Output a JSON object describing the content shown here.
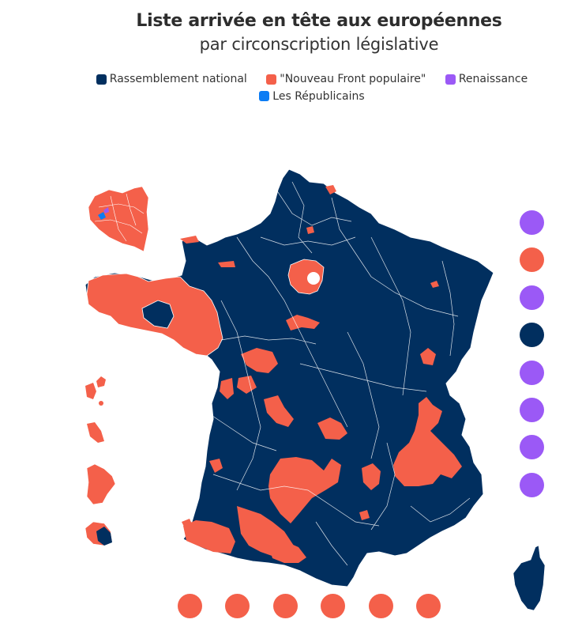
{
  "title": "Liste arrivée en tête aux européennes",
  "subtitle": "par circonscription législative",
  "colors": {
    "rn": "#012f5f",
    "nfp": "#f4604a",
    "renaissance": "#9b59f6",
    "lr": "#0b7cf4",
    "border": "#ffffff"
  },
  "legend": [
    {
      "label": "Rassemblement national",
      "key": "rn"
    },
    {
      "label": "\"Nouveau Front populaire\"",
      "key": "nfp"
    },
    {
      "label": "Renaissance",
      "key": "renaissance"
    },
    {
      "label": "Les Républicains",
      "key": "lr"
    }
  ],
  "map": {
    "territory": "France métropolitaine",
    "dominant_party": "rn",
    "insets": [
      {
        "name": "Paris et petite couronne",
        "dominant": "nfp",
        "also": [
          "lr",
          "renaissance"
        ]
      },
      {
        "name": "Guadeloupe",
        "dominant": "nfp"
      },
      {
        "name": "Martinique",
        "dominant": "nfp"
      },
      {
        "name": "Guyane",
        "dominant": "nfp"
      },
      {
        "name": "La Réunion",
        "dominant": "nfp",
        "also": [
          "rn"
        ]
      },
      {
        "name": "Corse",
        "dominant": "rn"
      }
    ]
  },
  "overseas_dots_right": [
    "renaissance",
    "nfp",
    "renaissance",
    "rn",
    "renaissance",
    "renaissance",
    "renaissance",
    "renaissance"
  ],
  "overseas_dots_bottom": [
    "nfp",
    "nfp",
    "nfp",
    "nfp",
    "nfp",
    "nfp"
  ]
}
